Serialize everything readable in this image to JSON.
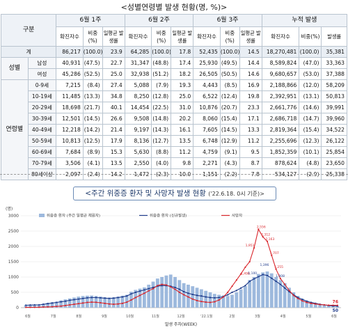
{
  "table": {
    "title": "<성별연령별 발생 현황(명, %)>",
    "header": {
      "category": "구분",
      "weeks": [
        "6월 1주",
        "6월 2주",
        "6월 3주",
        "누적 발생"
      ],
      "cols": [
        "확진자수",
        "비중(%)",
        "일평균 발생률",
        "확진자수",
        "비중(%)",
        "일평균 발생률",
        "확진자수",
        "비중(%)",
        "일평균 발생률",
        "확진자수",
        "비중(%)",
        "발생률"
      ]
    },
    "total": {
      "label": "계",
      "values": [
        "86,217",
        "(100.0)",
        "23.9",
        "64,285",
        "(100.0)",
        "17.8",
        "52,435",
        "(100.0)",
        "14.5",
        "18,270,481",
        "(100.0)",
        "35,381"
      ]
    },
    "gender_group": "성별",
    "gender": [
      {
        "label": "남성",
        "values": [
          "40,931",
          "(47.5)",
          "22.7",
          "31,347",
          "(48.8)",
          "17.4",
          "25,930",
          "(49.5)",
          "14.4",
          "8,589,824",
          "(47.0)",
          "33,363"
        ]
      },
      {
        "label": "여성",
        "values": [
          "45,286",
          "(52.5)",
          "25.0",
          "32,938",
          "(51.2)",
          "18.2",
          "26,505",
          "(50.5)",
          "14.6",
          "9,680,657",
          "(53.0)",
          "37,388"
        ]
      }
    ],
    "age_group": "연령별",
    "ages": [
      {
        "label": "0-9세",
        "values": [
          "7,215",
          "(8.4)",
          "27.4",
          "5,088",
          "(7.9)",
          "19.3",
          "4,443",
          "(8.5)",
          "16.9",
          "2,188,866",
          "(12.0)",
          "58,209"
        ]
      },
      {
        "label": "10-19세",
        "values": [
          "11,485",
          "(13.3)",
          "34.8",
          "8,250",
          "(12.8)",
          "25.0",
          "6,522",
          "(12.4)",
          "19.8",
          "2,392,951",
          "(13.1)",
          "50,813"
        ]
      },
      {
        "label": "20-29세",
        "values": [
          "18,698",
          "(21.7)",
          "40.1",
          "14,454",
          "(22.5)",
          "31.0",
          "10,876",
          "(20.7)",
          "23.3",
          "2,661,776",
          "(14.6)",
          "39,991"
        ]
      },
      {
        "label": "30-39세",
        "values": [
          "12,501",
          "(14.5)",
          "26.6",
          "9,508",
          "(14.8)",
          "20.2",
          "8,060",
          "(15.4)",
          "17.1",
          "2,686,718",
          "(14.7)",
          "39,960"
        ]
      },
      {
        "label": "40-49세",
        "values": [
          "12,218",
          "(14.2)",
          "21.4",
          "9,197",
          "(14.3)",
          "16.1",
          "7,605",
          "(14.5)",
          "13.3",
          "2,819,364",
          "(15.4)",
          "34,522"
        ]
      },
      {
        "label": "50-59세",
        "values": [
          "10,813",
          "(12.5)",
          "17.9",
          "8,136",
          "(12.7)",
          "13.5",
          "6,748",
          "(12.9)",
          "11.2",
          "2,255,696",
          "(12.3)",
          "26,122"
        ]
      },
      {
        "label": "60-69세",
        "values": [
          "7,684",
          "(8.9)",
          "15.3",
          "5,630",
          "(8.8)",
          "11.2",
          "4,759",
          "(9.1)",
          "9.5",
          "1,852,359",
          "(10.1)",
          "25,854"
        ]
      },
      {
        "label": "70-79세",
        "values": [
          "3,506",
          "(4.1)",
          "13.5",
          "2,550",
          "(4.0)",
          "9.8",
          "2,271",
          "(4.3)",
          "8.7",
          "878,624",
          "(4.8)",
          "23,650"
        ]
      },
      {
        "label": "80세이상",
        "values": [
          "2,097",
          "(2.4)",
          "14.2",
          "1,472",
          "(2.3)",
          "10.0",
          "1,151",
          "(2.2)",
          "7.8",
          "534,127",
          "(2.9)",
          "25,338"
        ]
      }
    ]
  },
  "chart_title": "<주간 위중증 환자 및 사망자 발생 현황",
  "chart_subtitle": "('22.6.18. 0시 기준)>",
  "chart_data": {
    "type": "bar",
    "ylabel": "(명)",
    "xlabel": "발생 주차(WEEK)",
    "ylim": [
      0,
      3000
    ],
    "yticks": [
      "0",
      "500",
      "1000",
      "1500",
      "2000",
      "2500",
      "3000"
    ],
    "month_labels": [
      "6월",
      "7월",
      "8월",
      "9월",
      "10월",
      "11월",
      "12월",
      "'22.1월",
      "2월",
      "3월",
      "4월",
      "5월",
      "6월"
    ],
    "series": [
      {
        "name": "위중증 환자 (주간 일평균 재원자)",
        "kind": "bar",
        "color": "#9db9dd",
        "values": [
          89,
          95,
          91,
          92,
          129,
          160,
          177,
          192,
          235,
          270,
          300,
          330,
          360,
          380,
          390,
          395,
          380,
          360,
          340,
          330,
          340,
          360,
          390,
          420,
          520,
          580,
          620,
          660,
          750,
          850,
          950,
          1000,
          1050,
          1080,
          1000,
          900,
          800,
          750,
          700,
          650,
          600,
          550,
          500,
          450,
          420,
          400,
          380,
          420,
          500,
          600,
          700,
          900,
          1000,
          1100,
          1150,
          1180,
          1120,
          1000,
          900,
          800,
          650,
          500,
          380,
          290,
          230,
          180,
          150,
          120,
          95,
          80,
          60,
          50
        ]
      },
      {
        "name": "위중증 환자 (신규발생)",
        "kind": "line",
        "color": "#1f3b8b",
        "values": [
          80,
          85,
          88,
          90,
          110,
          130,
          150,
          170,
          190,
          210,
          240,
          260,
          280,
          300,
          320,
          330,
          330,
          320,
          310,
          300,
          310,
          330,
          350,
          380,
          450,
          500,
          540,
          580,
          620,
          660,
          700,
          720,
          720,
          700,
          660,
          600,
          520,
          470,
          430,
          400,
          380,
          350,
          330,
          320,
          330,
          360,
          420,
          500,
          560,
          640,
          720,
          860,
          940,
          1010,
          1080,
          1050,
          960,
          860,
          760,
          640,
          520,
          420,
          330,
          270,
          210,
          170,
          140,
          110,
          90,
          70,
          55,
          50
        ]
      },
      {
        "name": "사망자",
        "kind": "line",
        "color": "#d9262c",
        "values": [
          10,
          10,
          12,
          14,
          20,
          25,
          30,
          40,
          50,
          70,
          90,
          110,
          130,
          150,
          170,
          180,
          175,
          160,
          140,
          120,
          110,
          120,
          140,
          180,
          250,
          330,
          400,
          470,
          550,
          620,
          720,
          760,
          740,
          680,
          600,
          500,
          420,
          350,
          280,
          230,
          200,
          180,
          170,
          190,
          250,
          350,
          500,
          700,
          900,
          1100,
          1320,
          1500,
          1951,
          2556,
          2312,
          2163,
          1707,
          1255,
          950,
          760,
          560,
          400,
          300,
          220,
          170,
          140,
          120,
          100,
          90,
          80,
          78,
          76
        ]
      }
    ],
    "peak_labels": [
      "2,556",
      "2,312",
      "2,163",
      "1,951",
      "1,707",
      "1,255",
      "1,498",
      "1,396",
      "1,100",
      "1,008"
    ],
    "end_labels": [
      "76",
      "50"
    ],
    "grid": true,
    "legend": "top-left"
  }
}
